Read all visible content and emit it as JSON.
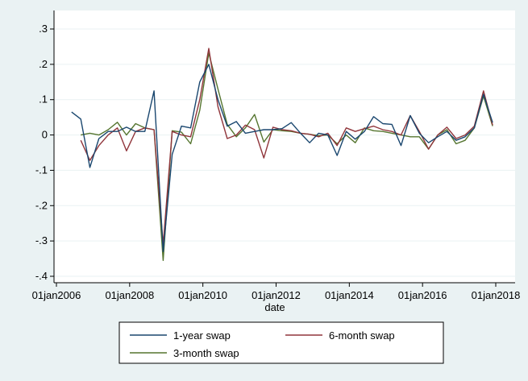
{
  "chart_data": {
    "type": "line",
    "title": "",
    "xlabel": "date",
    "ylabel": "",
    "x_ticks": [
      "01jan2006",
      "01jan2008",
      "01jan2010",
      "01jan2012",
      "01jan2014",
      "01jan2016",
      "01jan2018"
    ],
    "y_ticks": [
      ".3",
      ".2",
      ".1",
      "0",
      "-.1",
      "-.2",
      "-.3",
      "-.4"
    ],
    "xlim": [
      "2006-01-01",
      "2018-01-01"
    ],
    "ylim": [
      -0.4,
      0.3
    ],
    "grid": "horizontal",
    "legend_position": "bottom",
    "series": [
      {
        "name": "1-year swap",
        "color": "#1a476f",
        "points": [
          [
            "2006-06-01",
            0.065
          ],
          [
            "2006-09-01",
            0.045
          ],
          [
            "2006-12-01",
            -0.092
          ],
          [
            "2007-03-01",
            -0.01
          ],
          [
            "2007-06-01",
            0.01
          ],
          [
            "2007-09-01",
            0.01
          ],
          [
            "2007-12-01",
            0.022
          ],
          [
            "2008-03-01",
            0.01
          ],
          [
            "2008-06-01",
            0.01
          ],
          [
            "2008-09-01",
            0.125
          ],
          [
            "2008-12-01",
            -0.33
          ],
          [
            "2009-03-01",
            -0.055
          ],
          [
            "2009-06-01",
            0.025
          ],
          [
            "2009-09-01",
            0.02
          ],
          [
            "2009-12-01",
            0.15
          ],
          [
            "2010-03-01",
            0.2
          ],
          [
            "2010-06-01",
            0.1
          ],
          [
            "2010-09-01",
            0.025
          ],
          [
            "2010-12-01",
            0.038
          ],
          [
            "2011-03-01",
            0.005
          ],
          [
            "2011-06-01",
            0.01
          ],
          [
            "2011-09-01",
            0.015
          ],
          [
            "2011-12-01",
            0.015
          ],
          [
            "2012-03-01",
            0.018
          ],
          [
            "2012-06-01",
            0.035
          ],
          [
            "2012-09-01",
            0.005
          ],
          [
            "2012-12-01",
            -0.022
          ],
          [
            "2013-03-01",
            0.005
          ],
          [
            "2013-06-01",
            0.0
          ],
          [
            "2013-09-01",
            -0.058
          ],
          [
            "2013-12-01",
            0.01
          ],
          [
            "2014-03-01",
            -0.012
          ],
          [
            "2014-06-01",
            0.01
          ],
          [
            "2014-09-01",
            0.052
          ],
          [
            "2014-12-01",
            0.032
          ],
          [
            "2015-03-01",
            0.03
          ],
          [
            "2015-06-01",
            -0.03
          ],
          [
            "2015-09-01",
            0.055
          ],
          [
            "2015-12-01",
            0.005
          ],
          [
            "2016-03-01",
            -0.022
          ],
          [
            "2016-06-01",
            -0.005
          ],
          [
            "2016-09-01",
            0.01
          ],
          [
            "2016-12-01",
            -0.015
          ],
          [
            "2017-03-01",
            -0.005
          ],
          [
            "2017-06-01",
            0.02
          ],
          [
            "2017-09-01",
            0.115
          ],
          [
            "2017-12-01",
            0.035
          ]
        ]
      },
      {
        "name": "6-month swap",
        "color": "#90353b",
        "points": [
          [
            "2006-09-01",
            -0.015
          ],
          [
            "2006-12-01",
            -0.072
          ],
          [
            "2007-03-01",
            -0.03
          ],
          [
            "2007-06-01",
            0.0
          ],
          [
            "2007-09-01",
            0.02
          ],
          [
            "2007-12-01",
            -0.045
          ],
          [
            "2008-03-01",
            0.01
          ],
          [
            "2008-06-01",
            0.02
          ],
          [
            "2008-09-01",
            0.015
          ],
          [
            "2008-12-01",
            -0.31
          ],
          [
            "2009-03-01",
            0.01
          ],
          [
            "2009-06-01",
            0.0
          ],
          [
            "2009-09-01",
            -0.005
          ],
          [
            "2009-12-01",
            0.1
          ],
          [
            "2010-03-01",
            0.245
          ],
          [
            "2010-06-01",
            0.08
          ],
          [
            "2010-09-01",
            -0.01
          ],
          [
            "2010-12-01",
            0.0
          ],
          [
            "2011-03-01",
            0.028
          ],
          [
            "2011-06-01",
            0.015
          ],
          [
            "2011-09-01",
            -0.065
          ],
          [
            "2011-12-01",
            0.022
          ],
          [
            "2012-03-01",
            0.015
          ],
          [
            "2012-06-01",
            0.012
          ],
          [
            "2012-09-01",
            0.005
          ],
          [
            "2012-12-01",
            0.002
          ],
          [
            "2013-03-01",
            -0.005
          ],
          [
            "2013-06-01",
            0.005
          ],
          [
            "2013-09-01",
            -0.03
          ],
          [
            "2013-12-01",
            0.02
          ],
          [
            "2014-03-01",
            0.01
          ],
          [
            "2014-06-01",
            0.018
          ],
          [
            "2014-09-01",
            0.025
          ],
          [
            "2014-12-01",
            0.015
          ],
          [
            "2015-03-01",
            0.01
          ],
          [
            "2015-06-01",
            0.0
          ],
          [
            "2015-09-01",
            0.055
          ],
          [
            "2015-12-01",
            0.01
          ],
          [
            "2016-03-01",
            -0.04
          ],
          [
            "2016-06-01",
            0.0
          ],
          [
            "2016-09-01",
            0.022
          ],
          [
            "2016-12-01",
            -0.01
          ],
          [
            "2017-03-01",
            0.0
          ],
          [
            "2017-06-01",
            0.025
          ],
          [
            "2017-09-01",
            0.125
          ],
          [
            "2017-12-01",
            0.028
          ]
        ]
      },
      {
        "name": "3-month swap",
        "color": "#55752f",
        "points": [
          [
            "2006-09-01",
            0.0
          ],
          [
            "2006-12-01",
            0.005
          ],
          [
            "2007-03-01",
            0.0
          ],
          [
            "2007-06-01",
            0.015
          ],
          [
            "2007-09-01",
            0.036
          ],
          [
            "2007-12-01",
            0.0
          ],
          [
            "2008-03-01",
            0.032
          ],
          [
            "2008-06-01",
            0.02
          ],
          [
            "2008-09-01",
            0.015
          ],
          [
            "2008-12-01",
            -0.355
          ],
          [
            "2009-03-01",
            0.012
          ],
          [
            "2009-06-01",
            0.008
          ],
          [
            "2009-09-01",
            -0.025
          ],
          [
            "2009-12-01",
            0.07
          ],
          [
            "2010-03-01",
            0.232
          ],
          [
            "2010-06-01",
            0.13
          ],
          [
            "2010-09-01",
            0.03
          ],
          [
            "2010-12-01",
            -0.005
          ],
          [
            "2011-03-01",
            0.02
          ],
          [
            "2011-06-01",
            0.058
          ],
          [
            "2011-09-01",
            -0.02
          ],
          [
            "2011-12-01",
            0.015
          ],
          [
            "2012-03-01",
            0.012
          ],
          [
            "2012-06-01",
            0.01
          ],
          [
            "2012-09-01",
            0.005
          ],
          [
            "2012-12-01",
            0.002
          ],
          [
            "2013-03-01",
            -0.002
          ],
          [
            "2013-06-01",
            0.0
          ],
          [
            "2013-09-01",
            -0.025
          ],
          [
            "2013-12-01",
            0.0
          ],
          [
            "2014-03-01",
            -0.022
          ],
          [
            "2014-06-01",
            0.02
          ],
          [
            "2014-09-01",
            0.012
          ],
          [
            "2014-12-01",
            0.01
          ],
          [
            "2015-03-01",
            0.005
          ],
          [
            "2015-06-01",
            0.0
          ],
          [
            "2015-09-01",
            -0.005
          ],
          [
            "2015-12-01",
            -0.005
          ],
          [
            "2016-03-01",
            -0.04
          ],
          [
            "2016-06-01",
            0.0
          ],
          [
            "2016-09-01",
            0.015
          ],
          [
            "2016-12-01",
            -0.025
          ],
          [
            "2017-03-01",
            -0.015
          ],
          [
            "2017-06-01",
            0.02
          ],
          [
            "2017-09-01",
            0.11
          ],
          [
            "2017-12-01",
            0.025
          ]
        ]
      }
    ],
    "legend": [
      {
        "label": "1-year swap",
        "series": 0
      },
      {
        "label": "6-month swap",
        "series": 1
      },
      {
        "label": "3-month swap",
        "series": 2
      }
    ]
  }
}
